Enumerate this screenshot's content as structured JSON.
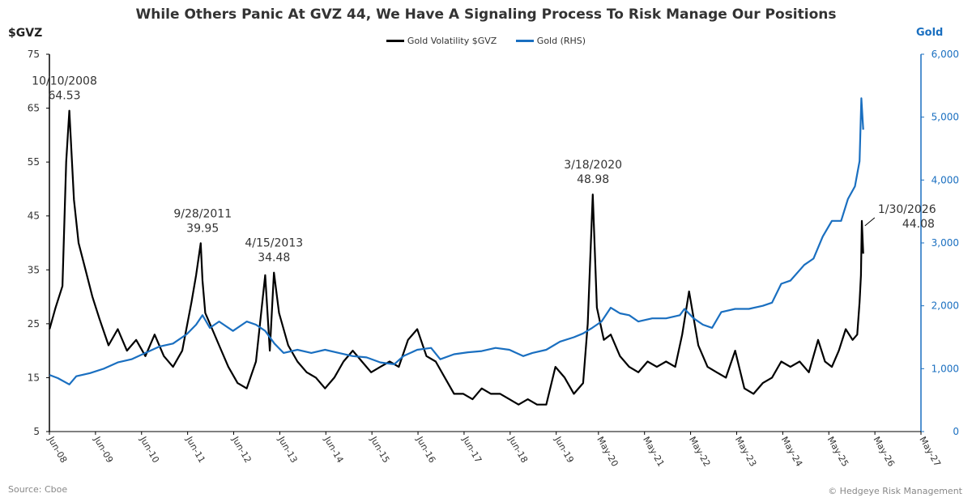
{
  "chart_data": {
    "type": "line",
    "title": "While Others Panic At GVZ 44, We Have A Signaling Process To Risk Manage Our Positions",
    "left_axis_label": "$GVZ",
    "right_axis_label": "Gold",
    "left_ylim": [
      5,
      75
    ],
    "left_yticks": [
      "5",
      "15",
      "25",
      "35",
      "45",
      "55",
      "65",
      "75"
    ],
    "right_ylim": [
      0,
      6000
    ],
    "right_yticks": [
      "0",
      "1,000",
      "2,000",
      "3,000",
      "4,000",
      "5,000",
      "6,000"
    ],
    "xlim": [
      "2008-06",
      "2027-05"
    ],
    "x_ticks": [
      "Jun-08",
      "Jun-09",
      "Jun-10",
      "Jun-11",
      "Jun-12",
      "Jun-13",
      "Jun-14",
      "Jun-15",
      "Jun-16",
      "Jun-17",
      "Jun-18",
      "Jun-19",
      "May-20",
      "May-21",
      "May-22",
      "May-23",
      "May-24",
      "May-25",
      "May-26",
      "May-27"
    ],
    "grid": false,
    "legend_position": "top-center",
    "series": [
      {
        "name": "Gold Volatility $GVZ",
        "color": "#000000",
        "axis": "left",
        "x": [
          2008.42,
          2008.55,
          2008.7,
          2008.78,
          2008.85,
          2008.95,
          2009.05,
          2009.2,
          2009.35,
          2009.5,
          2009.7,
          2009.9,
          2010.1,
          2010.3,
          2010.5,
          2010.7,
          2010.9,
          2011.1,
          2011.3,
          2011.5,
          2011.6,
          2011.7,
          2011.74,
          2011.8,
          2011.95,
          2012.1,
          2012.3,
          2012.5,
          2012.7,
          2012.9,
          2013.1,
          2013.2,
          2013.29,
          2013.4,
          2013.6,
          2013.8,
          2014.0,
          2014.2,
          2014.4,
          2014.6,
          2014.8,
          2015.0,
          2015.2,
          2015.4,
          2015.6,
          2015.8,
          2016.0,
          2016.2,
          2016.4,
          2016.6,
          2016.8,
          2017.0,
          2017.2,
          2017.4,
          2017.6,
          2017.8,
          2018.0,
          2018.2,
          2018.4,
          2018.6,
          2018.8,
          2019.0,
          2019.2,
          2019.4,
          2019.6,
          2019.8,
          2020.0,
          2020.1,
          2020.21,
          2020.3,
          2020.45,
          2020.6,
          2020.8,
          2021.0,
          2021.2,
          2021.4,
          2021.6,
          2021.8,
          2022.0,
          2022.15,
          2022.3,
          2022.5,
          2022.7,
          2022.9,
          2023.1,
          2023.3,
          2023.5,
          2023.7,
          2023.9,
          2024.1,
          2024.3,
          2024.5,
          2024.7,
          2024.9,
          2025.1,
          2025.25,
          2025.4,
          2025.55,
          2025.7,
          2025.85,
          2025.95,
          2026.0,
          2026.03,
          2026.05,
          2026.08
        ],
        "values": [
          24,
          28,
          32,
          55,
          64.53,
          48,
          40,
          35,
          30,
          26,
          21,
          24,
          20,
          22,
          19,
          23,
          19,
          17,
          20,
          29,
          34,
          39.95,
          33,
          27,
          24,
          21,
          17,
          14,
          13,
          18,
          34,
          20,
          34.48,
          27,
          21,
          18,
          16,
          15,
          13,
          15,
          18,
          20,
          18,
          16,
          17,
          18,
          17,
          22,
          24,
          19,
          18,
          15,
          12,
          12,
          11,
          13,
          12,
          12,
          11,
          10,
          11,
          10,
          10,
          17,
          15,
          12,
          14,
          25,
          48.98,
          28,
          22,
          23,
          19,
          17,
          16,
          18,
          17,
          18,
          17,
          23,
          31,
          21,
          17,
          16,
          15,
          20,
          13,
          12,
          14,
          15,
          18,
          17,
          18,
          16,
          22,
          18,
          17,
          20,
          24,
          22,
          23,
          29,
          34,
          44.08,
          38
        ]
      },
      {
        "name": "Gold (RHS)",
        "color": "#1a6fc0",
        "axis": "right",
        "x": [
          2008.42,
          2008.6,
          2008.85,
          2009.0,
          2009.3,
          2009.6,
          2009.9,
          2010.2,
          2010.5,
          2010.8,
          2011.1,
          2011.4,
          2011.6,
          2011.74,
          2011.9,
          2012.1,
          2012.4,
          2012.7,
          2012.9,
          2013.1,
          2013.3,
          2013.5,
          2013.8,
          2014.1,
          2014.4,
          2014.7,
          2015.0,
          2015.3,
          2015.6,
          2015.9,
          2016.1,
          2016.4,
          2016.7,
          2016.9,
          2017.2,
          2017.5,
          2017.8,
          2018.1,
          2018.4,
          2018.7,
          2018.9,
          2019.2,
          2019.5,
          2019.8,
          2020.0,
          2020.2,
          2020.4,
          2020.6,
          2020.8,
          2021.0,
          2021.2,
          2021.5,
          2021.8,
          2022.1,
          2022.2,
          2022.4,
          2022.6,
          2022.8,
          2023.0,
          2023.3,
          2023.6,
          2023.9,
          2024.1,
          2024.3,
          2024.5,
          2024.8,
          2025.0,
          2025.2,
          2025.4,
          2025.6,
          2025.75,
          2025.9,
          2026.0,
          2026.04,
          2026.08
        ],
        "values": [
          900,
          850,
          750,
          880,
          930,
          1000,
          1100,
          1150,
          1250,
          1350,
          1400,
          1550,
          1700,
          1850,
          1650,
          1750,
          1600,
          1750,
          1700,
          1600,
          1400,
          1250,
          1300,
          1250,
          1300,
          1250,
          1200,
          1180,
          1100,
          1070,
          1200,
          1300,
          1330,
          1150,
          1230,
          1260,
          1280,
          1330,
          1300,
          1200,
          1250,
          1300,
          1430,
          1500,
          1560,
          1650,
          1750,
          1970,
          1880,
          1850,
          1750,
          1800,
          1800,
          1850,
          1950,
          1800,
          1700,
          1650,
          1900,
          1950,
          1950,
          2000,
          2050,
          2350,
          2400,
          2650,
          2750,
          3100,
          3350,
          3350,
          3700,
          3900,
          4300,
          5300,
          4800
        ]
      }
    ],
    "annotations": [
      {
        "date": "10/10/2008",
        "value": "64.53"
      },
      {
        "date": "9/28/2011",
        "value": "39.95"
      },
      {
        "date": "4/15/2013",
        "value": "34.48"
      },
      {
        "date": "3/18/2020",
        "value": "48.98"
      },
      {
        "date": "1/30/2026",
        "value": "44.08"
      }
    ]
  },
  "footer": {
    "source": "Source: Cboe",
    "copyright": "© Hedgeye Risk Management"
  }
}
